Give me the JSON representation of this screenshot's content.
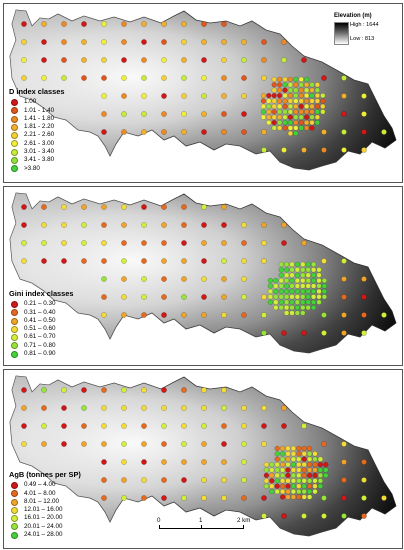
{
  "maps": [
    {
      "id": "d_index",
      "legend_title": "D index classes",
      "classes": [
        {
          "label": "1.00",
          "color": "#d01818"
        },
        {
          "label": "1.01 - 1.40",
          "color": "#e0561c"
        },
        {
          "label": "1.41 - 1.80",
          "color": "#ec8a24"
        },
        {
          "label": "1.81 - 2.20",
          "color": "#f2b02c"
        },
        {
          "label": "2.21 - 2.60",
          "color": "#f4d236"
        },
        {
          "label": "2.61 - 3.00",
          "color": "#f0ef3c"
        },
        {
          "label": "3.01 - 3.40",
          "color": "#c8ec3a"
        },
        {
          "label": "3.41 - 3.80",
          "color": "#92e23a"
        },
        {
          "label": ">3.80",
          "color": "#44d23a"
        }
      ],
      "elevation": {
        "title": "Elevation (m)",
        "high": "High : 1644",
        "low": "Low : 813"
      }
    },
    {
      "id": "gini_index",
      "legend_title": "Gini index classes",
      "classes": [
        {
          "label": "0.21 – 0.30",
          "color": "#d01818"
        },
        {
          "label": "0.31 – 0.40",
          "color": "#e66a1e"
        },
        {
          "label": "0.41 – 0.50",
          "color": "#f0a42a"
        },
        {
          "label": "0.51 – 0.60",
          "color": "#f4dc38"
        },
        {
          "label": "0.61 – 0.70",
          "color": "#d4ee3c"
        },
        {
          "label": "0.71 – 0.80",
          "color": "#98e43a"
        },
        {
          "label": "0.81 – 0.90",
          "color": "#44d23a"
        }
      ]
    },
    {
      "id": "agb",
      "legend_title": "AgB (tonnes per SP)",
      "classes": [
        {
          "label": "0.49 – 4.00",
          "color": "#d01818"
        },
        {
          "label": "4.01 – 8.00",
          "color": "#e66a1e"
        },
        {
          "label": "8.01 – 12.00",
          "color": "#f0a42a"
        },
        {
          "label": "12.01 – 16.00",
          "color": "#f4dc38"
        },
        {
          "label": "16.01 – 20.00",
          "color": "#d4ee3c"
        },
        {
          "label": "20.01 – 24.00",
          "color": "#98e43a"
        },
        {
          "label": "24.01 – 28.00",
          "color": "#44d23a"
        }
      ],
      "scale_bar": {
        "ticks": [
          "0",
          "1",
          "2 km"
        ]
      }
    }
  ],
  "colors": {
    "outline": "#333333",
    "frame": "#555555"
  }
}
